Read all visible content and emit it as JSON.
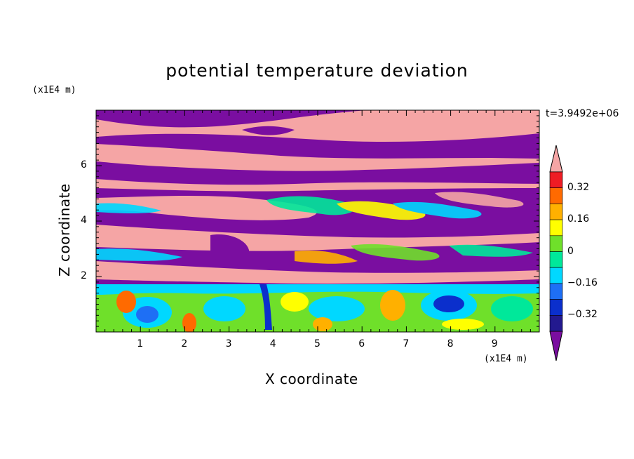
{
  "chart_data": {
    "type": "heatmap",
    "title": "potential temperature deviation",
    "xlabel": "X coordinate",
    "ylabel": "Z coordinate",
    "x_unit": "(x1E4 m)",
    "y_unit": "(x1E4 m)",
    "time_label": "t=3.9492e+06",
    "xlim": [
      0,
      10
    ],
    "ylim": [
      0,
      8
    ],
    "x_ticks": [
      "1",
      "2",
      "3",
      "4",
      "5",
      "6",
      "7",
      "8",
      "9"
    ],
    "y_ticks": [
      "2",
      "4",
      "6"
    ],
    "colorbar": {
      "levels": [
        -0.4,
        -0.32,
        -0.24,
        -0.16,
        -0.08,
        0,
        0.08,
        0.16,
        0.24,
        0.32,
        0.4
      ],
      "tick_labels": [
        "0.32",
        "0.16",
        "0",
        "−0.16",
        "−0.32"
      ],
      "colors": [
        "#7a0ea0",
        "#23198f",
        "#0b2fcc",
        "#1e6ff5",
        "#00d8ff",
        "#00e89a",
        "#6fe02a",
        "#ffff00",
        "#ffb000",
        "#ff6a00",
        "#ee1c24",
        "#f5a5a5"
      ]
    }
  }
}
